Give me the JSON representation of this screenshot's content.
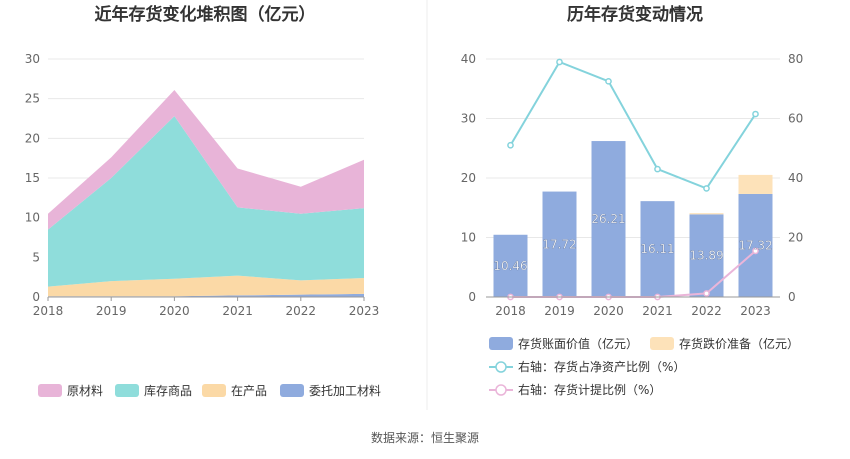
{
  "source": "数据来源：恒生聚源",
  "colors": {
    "raw": "#e8b4d8",
    "finished": "#8fdddb",
    "wip": "#fbd9a6",
    "consigned": "#8fabde",
    "book": "#8fabde",
    "provision": "#fde2b9",
    "ratio_line": "#84d3dc",
    "prov_line": "#eab5d9",
    "grid": "#e8e8e8",
    "axis": "#999999"
  },
  "chart_data": [
    {
      "type": "area",
      "title": "近年存货变化堆积图（亿元）",
      "x": [
        "2018",
        "2019",
        "2020",
        "2021",
        "2022",
        "2023"
      ],
      "ylim": [
        0,
        30
      ],
      "yticks": [
        "0",
        "5",
        "10",
        "15",
        "20",
        "25",
        "30"
      ],
      "stacked": true,
      "series": [
        {
          "key": "consigned",
          "name": "委托加工材料",
          "values": [
            0.1,
            0.1,
            0.1,
            0.2,
            0.3,
            0.4
          ]
        },
        {
          "key": "wip",
          "name": "在产品",
          "values": [
            1.2,
            1.9,
            2.2,
            2.5,
            1.8,
            2.0
          ]
        },
        {
          "key": "finished",
          "name": "库存商品",
          "values": [
            7.2,
            13.0,
            20.5,
            8.6,
            8.4,
            8.8
          ]
        },
        {
          "key": "raw",
          "name": "原材料",
          "values": [
            2.0,
            2.6,
            3.3,
            4.9,
            3.4,
            6.1
          ]
        }
      ],
      "legend_order": [
        "raw",
        "finished",
        "wip",
        "consigned"
      ]
    },
    {
      "type": "bar",
      "title": "历年存货变动情况",
      "x": [
        "2018",
        "2019",
        "2020",
        "2021",
        "2022",
        "2023"
      ],
      "ylim_left": [
        0,
        40
      ],
      "yticks_left": [
        "0",
        "10",
        "20",
        "30",
        "40"
      ],
      "ylim_right": [
        0,
        80
      ],
      "yticks_right": [
        "0",
        "20",
        "40",
        "60",
        "80"
      ],
      "bars": [
        {
          "key": "book",
          "name": "存货账面价值（亿元）",
          "values": [
            10.46,
            17.72,
            26.21,
            16.11,
            13.89,
            17.32
          ],
          "labels": [
            "10.46",
            "17.72",
            "26.21",
            "16.11",
            "13.89",
            "17.32"
          ]
        },
        {
          "key": "provision",
          "name": "存货跌价准备（亿元）",
          "values": [
            0.0,
            0.0,
            0.0,
            0.0,
            0.2,
            3.2
          ]
        }
      ],
      "lines": [
        {
          "key": "ratio_line",
          "name": "右轴：存货占净资产比例（%）",
          "values": [
            51,
            79,
            72.5,
            43,
            36.5,
            61.5
          ]
        },
        {
          "key": "prov_line",
          "name": "右轴：存货计提比例（%）",
          "values": [
            0,
            0,
            0,
            0,
            1.2,
            15.5
          ]
        }
      ]
    }
  ]
}
